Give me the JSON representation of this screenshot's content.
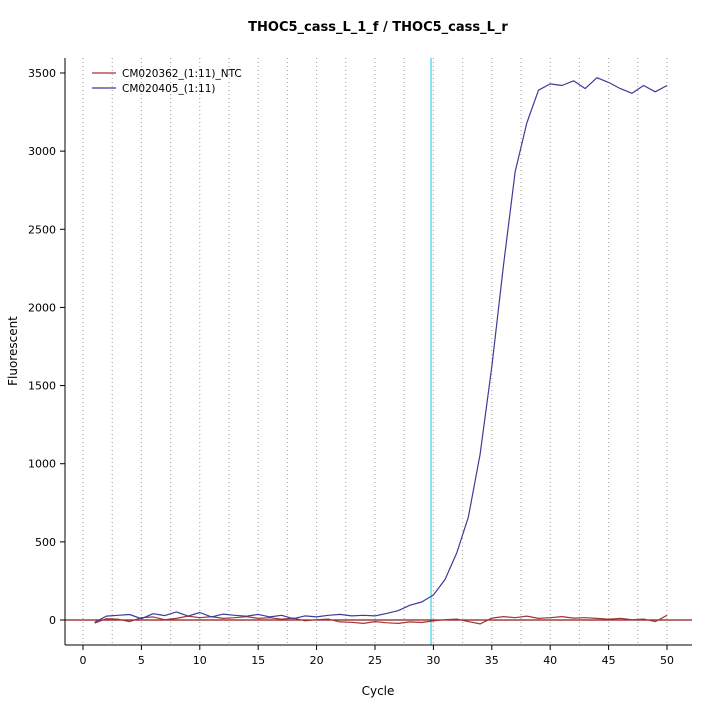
{
  "title": "THOC5_cass_L_1_f / THOC5_cass_L_r",
  "chart_data": {
    "type": "line",
    "title": "THOC5_cass_L_1_f / THOC5_cass_L_r",
    "xlabel": "Cycle",
    "ylabel": "Fluorescent",
    "xlim": [
      0,
      50
    ],
    "ylim": [
      0,
      3500
    ],
    "x_ticks": [
      0,
      5,
      10,
      15,
      20,
      25,
      30,
      35,
      40,
      45,
      50
    ],
    "y_ticks": [
      0,
      500,
      1000,
      1500,
      2000,
      2500,
      3000,
      3500
    ],
    "grid": "vertical-dotted",
    "grid_step": 2.5,
    "legend_position": "top-left",
    "threshold_y": 0,
    "ct_line_x": 29.8,
    "colors": {
      "threshold": "#8b1a1a",
      "ct_line": "#5fdde9",
      "grid": "#9a9a9a",
      "axis": "#000000"
    },
    "x": [
      1,
      2,
      3,
      4,
      5,
      6,
      7,
      8,
      9,
      10,
      11,
      12,
      13,
      14,
      15,
      16,
      17,
      18,
      19,
      20,
      21,
      22,
      23,
      24,
      25,
      26,
      27,
      28,
      29,
      30,
      31,
      32,
      33,
      34,
      35,
      36,
      37,
      38,
      39,
      40,
      41,
      42,
      43,
      44,
      45,
      46,
      47,
      48,
      49,
      50
    ],
    "series": [
      {
        "name": "CM020362_(1:11)_NTC",
        "color": "#a33536",
        "values": [
          -20,
          8,
          5,
          -10,
          15,
          20,
          2,
          10,
          25,
          15,
          22,
          10,
          15,
          22,
          10,
          15,
          5,
          12,
          -5,
          2,
          6,
          -12,
          -15,
          -22,
          -10,
          -18,
          -22,
          -12,
          -16,
          -6,
          2,
          6,
          -10,
          -25,
          12,
          22,
          15,
          25,
          10,
          15,
          22,
          12,
          15,
          10,
          5,
          10,
          2,
          6,
          -10,
          30
        ]
      },
      {
        "name": "CM020405_(1:11)",
        "color": "#3c3c99",
        "values": [
          -15,
          25,
          30,
          35,
          8,
          40,
          28,
          52,
          25,
          48,
          20,
          38,
          30,
          24,
          36,
          20,
          30,
          8,
          26,
          20,
          30,
          36,
          26,
          30,
          26,
          42,
          60,
          95,
          115,
          160,
          260,
          430,
          660,
          1060,
          1620,
          2270,
          2870,
          3180,
          3390,
          3430,
          3420,
          3450,
          3400,
          3470,
          3440,
          3400,
          3370,
          3420,
          3380,
          3420
        ]
      }
    ]
  }
}
